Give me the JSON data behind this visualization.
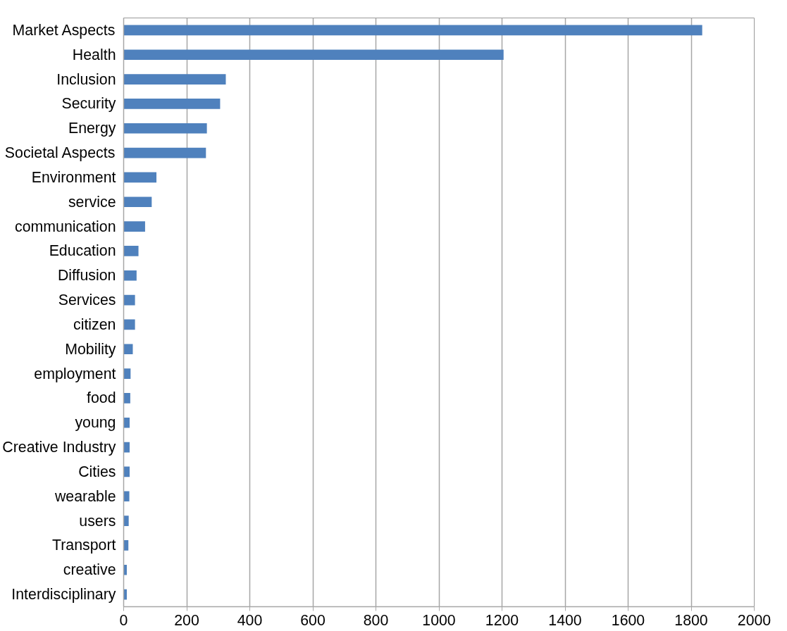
{
  "chart_data": {
    "type": "bar",
    "orientation": "horizontal",
    "categories": [
      "Market Aspects",
      "Health",
      "Inclusion",
      "Security",
      "Energy",
      "Societal Aspects",
      "Environment",
      "service",
      "communication",
      "Education",
      "Diffusion",
      "Services",
      "citizen",
      "Mobility",
      "employment",
      "food",
      "young",
      "Creative Industry",
      "Cities",
      "wearable",
      "users",
      "Transport",
      "creative",
      "Interdisciplinary"
    ],
    "values": [
      1835,
      1205,
      324,
      306,
      264,
      261,
      104,
      89,
      68,
      47,
      41,
      36,
      36,
      29,
      22,
      21,
      19,
      19,
      19,
      18,
      16,
      15,
      10,
      10
    ],
    "color": "#4f81bd",
    "xlim": [
      0,
      2000
    ],
    "xticks": [
      0,
      200,
      400,
      600,
      800,
      1000,
      1200,
      1400,
      1600,
      1800,
      2000
    ],
    "grid": "x"
  }
}
